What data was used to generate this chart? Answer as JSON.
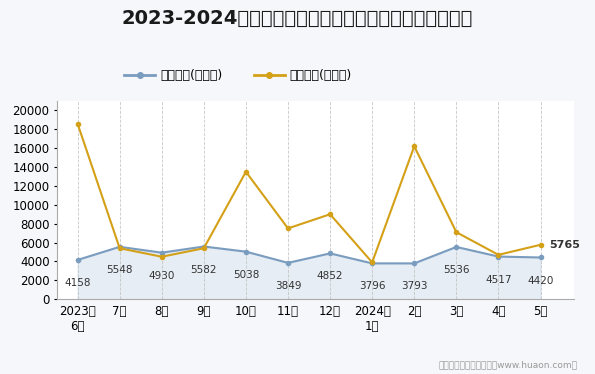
{
  "title": "2023-2024年兰州市商品收发货人所在地进、出口额统计",
  "x_labels": [
    "2023年\n6月",
    "7月",
    "8月",
    "9月",
    "10月",
    "11月",
    "12月",
    "2024年\n1月",
    "2月",
    "3月",
    "4月",
    "5月"
  ],
  "export_values": [
    4158,
    5548,
    4930,
    5582,
    5038,
    3849,
    4852,
    3796,
    3793,
    5536,
    4517,
    4420
  ],
  "import_values": [
    18600,
    5400,
    4500,
    5400,
    13500,
    7500,
    9000,
    3900,
    16200,
    7100,
    4700,
    5765
  ],
  "export_color": "#7a9cbf",
  "import_color": "#d4a017",
  "export_fill_color": "#c8d9e8",
  "export_label": "出口总额(万美元)",
  "import_label": "进口总额(万美元)",
  "ylim": [
    0,
    21000
  ],
  "yticks": [
    0,
    2000,
    4000,
    6000,
    8000,
    10000,
    12000,
    14000,
    16000,
    18000,
    20000
  ],
  "footer": "制图：华经产业研究院（www.huaon.com）",
  "bg_color": "#f5f7fa",
  "plot_bg_color": "#ffffff",
  "title_fontsize": 14,
  "tick_fontsize": 8.5,
  "legend_fontsize": 9,
  "annotation_fontsize": 7.5
}
